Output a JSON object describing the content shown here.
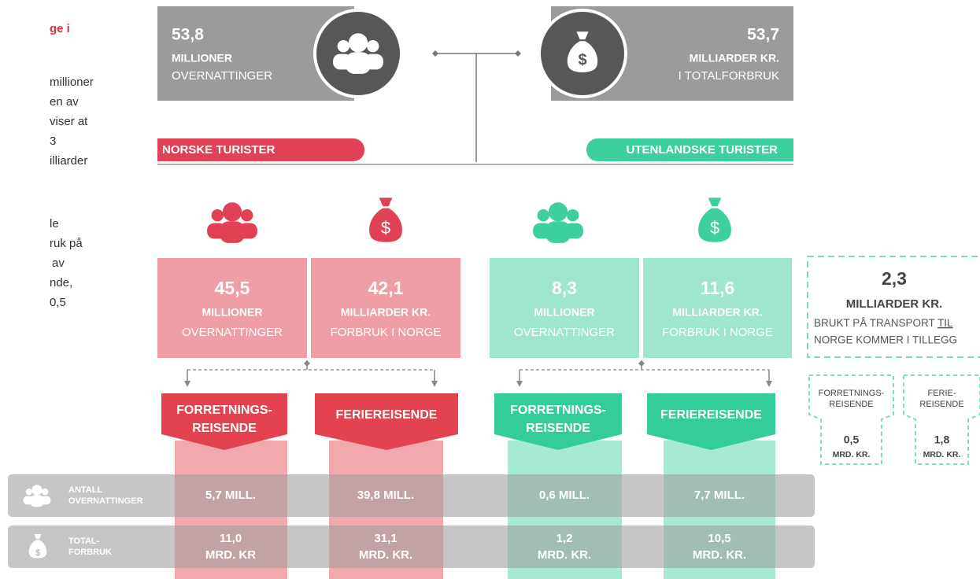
{
  "sidebar": {
    "heading": "ge i",
    "paragraph_1": [
      "millioner",
      "en av",
      "viser at",
      "3",
      "illiarder"
    ],
    "paragraph_2": [
      "le",
      "ruk på",
      "av",
      "nde,",
      "0,5"
    ]
  },
  "currency_symbol": "$",
  "top": {
    "left": {
      "value": "53,8",
      "unit": "MILLIONER",
      "desc": "OVERNATTINGER"
    },
    "right": {
      "value": "53,7",
      "unit": "MILLIARDER KR.",
      "desc": "I TOTALFORBRUK"
    }
  },
  "groups": {
    "norske": "NORSKE TURISTER",
    "utenlandske": "UTENLANDSKE TURISTER"
  },
  "cards": [
    {
      "value": "45,5",
      "unit": "MILLIONER",
      "desc": "OVERNATTINGER"
    },
    {
      "value": "42,1",
      "unit": "MILLIARDER KR.",
      "desc": "FORBRUK I NORGE"
    },
    {
      "value": "8,3",
      "unit": "MILLIONER",
      "desc": "OVERNATTINGER"
    },
    {
      "value": "11,6",
      "unit": "MILLIARDER KR.",
      "desc": "FORBRUK I NORGE"
    }
  ],
  "transport": {
    "value": "2,3",
    "unit": "MILLIARDER KR.",
    "desc_before": "BRUKT PÅ TRANSPORT",
    "desc_underlined": "TIL",
    "desc_after": "NORGE KOMMER I TILLEGG",
    "parts": [
      {
        "label": [
          "FORRETNINGS-",
          "REISENDE"
        ],
        "value": "0,5",
        "unit": "MRD. KR."
      },
      {
        "label": [
          "FERIE-",
          "REISENDE"
        ],
        "value": "1,8",
        "unit": "MRD. KR."
      }
    ]
  },
  "segments": [
    [
      "FORRETNINGS-",
      "REISENDE"
    ],
    [
      "FERIEREISENDE"
    ],
    [
      "FORRETNINGS-",
      "REISENDE"
    ],
    [
      "FERIEREISENDE"
    ]
  ],
  "rows": [
    {
      "label": [
        "ANTALL",
        "OVERNATTINGER"
      ],
      "values": [
        [
          "5,7 MILL."
        ],
        [
          "39,8 MILL."
        ],
        [
          "0,6 MILL."
        ],
        [
          "7,7 MILL."
        ]
      ]
    },
    {
      "label": [
        "TOTAL-",
        "FORBRUK"
      ],
      "values": [
        [
          "11,0",
          "MRD. KR"
        ],
        [
          "31,1",
          "MRD. KR."
        ],
        [
          "1,2",
          "MRD. KR."
        ],
        [
          "10,5",
          "MRD. KR."
        ]
      ]
    }
  ]
}
